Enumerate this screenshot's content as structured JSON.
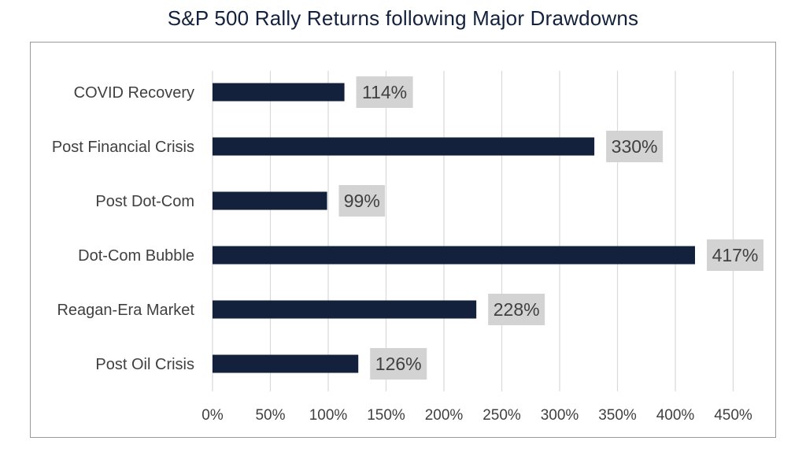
{
  "chart_data": {
    "type": "bar",
    "orientation": "horizontal",
    "title": "S&P 500 Rally Returns following Major Drawdowns",
    "categories": [
      "COVID Recovery",
      "Post Financial Crisis",
      "Post Dot-Com",
      "Dot-Com Bubble",
      "Reagan-Era Market",
      "Post Oil Crisis"
    ],
    "values": [
      114,
      330,
      99,
      417,
      228,
      126
    ],
    "data_labels": [
      "114%",
      "330%",
      "99%",
      "417%",
      "228%",
      "126%"
    ],
    "xticks": [
      "0%",
      "50%",
      "100%",
      "150%",
      "200%",
      "250%",
      "300%",
      "350%",
      "400%",
      "450%"
    ],
    "xlim": [
      0,
      450
    ],
    "xlabel": "",
    "ylabel": "",
    "grid": "vertical",
    "legend": "none",
    "bar_color": "#14213d",
    "label_box_color": "#d3d3d3"
  }
}
